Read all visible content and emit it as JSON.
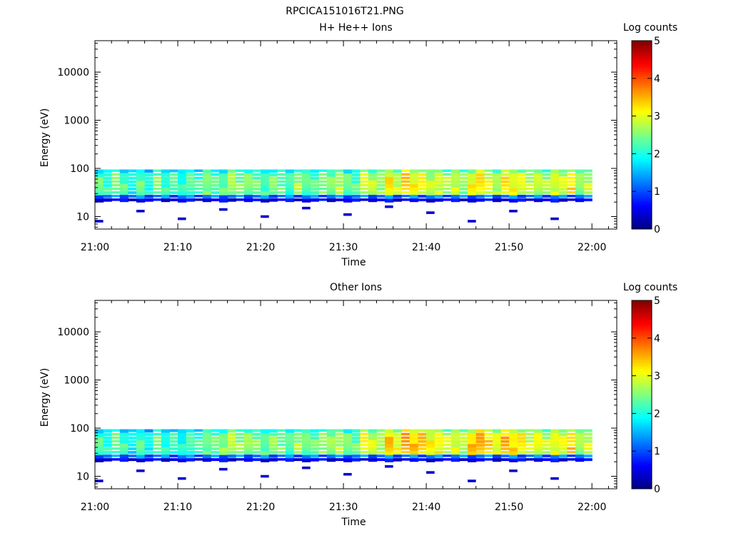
{
  "figure": {
    "title": "RPCICA151016T21.PNG"
  },
  "chart_data": [
    {
      "type": "heatmap",
      "title": "H+ He++ Ions",
      "xlabel": "Time",
      "ylabel": "Energy (eV)",
      "y_scale": "log",
      "x_ticks": [
        "21:00",
        "21:10",
        "21:20",
        "21:30",
        "21:40",
        "21:50",
        "22:00"
      ],
      "y_ticks": [
        "10",
        "100",
        "1000",
        "10000"
      ],
      "x_range": [
        "21:00",
        "22:03"
      ],
      "y_range": [
        5.5,
        45000
      ],
      "data_x_range": [
        "21:00",
        "22:00"
      ],
      "energy_band": [
        20,
        95
      ],
      "colorbar": {
        "label": "Log counts",
        "ticks": [
          "0",
          "1",
          "2",
          "3",
          "4",
          "5"
        ],
        "range": [
          0,
          5
        ]
      },
      "profile_log_counts": [
        2.6,
        2.4,
        2.7,
        2.5,
        2.2,
        2.6,
        2.3,
        2.7,
        2.4,
        2.5,
        2.3,
        2.6,
        2.4,
        2.8,
        2.5,
        2.6,
        2.9,
        2.7,
        2.8,
        2.6,
        2.5,
        2.7,
        2.6,
        2.4,
        2.9,
        2.6,
        2.5,
        2.8,
        2.7,
        3.0,
        2.6,
        2.5,
        3.2,
        3.0,
        2.9,
        3.4,
        3.1,
        3.6,
        3.3,
        3.4,
        3.0,
        3.2,
        2.9,
        3.1,
        2.8,
        3.3,
        3.5,
        3.2,
        3.0,
        3.4,
        3.3,
        3.2,
        3.0,
        3.1,
        2.9,
        3.2,
        3.1,
        3.5,
        2.8,
        3.0
      ]
    },
    {
      "type": "heatmap",
      "title": "Other Ions",
      "xlabel": "Time",
      "ylabel": "Energy (eV)",
      "y_scale": "log",
      "x_ticks": [
        "21:00",
        "21:10",
        "21:20",
        "21:30",
        "21:40",
        "21:50",
        "22:00"
      ],
      "y_ticks": [
        "10",
        "100",
        "1000",
        "10000"
      ],
      "x_range": [
        "21:00",
        "22:03"
      ],
      "y_range": [
        5.5,
        45000
      ],
      "data_x_range": [
        "21:00",
        "22:00"
      ],
      "energy_band": [
        20,
        95
      ],
      "colorbar": {
        "label": "Log counts",
        "ticks": [
          "0",
          "1",
          "2",
          "3",
          "4",
          "5"
        ],
        "range": [
          0,
          5
        ]
      },
      "profile_log_counts": [
        2.5,
        2.3,
        2.6,
        2.4,
        2.1,
        2.5,
        2.2,
        2.6,
        2.3,
        2.4,
        2.2,
        2.5,
        2.4,
        2.7,
        2.6,
        2.8,
        3.0,
        2.8,
        2.9,
        2.7,
        2.6,
        2.8,
        2.7,
        2.5,
        2.9,
        2.7,
        2.6,
        2.9,
        2.8,
        3.0,
        2.7,
        2.6,
        3.4,
        3.1,
        3.0,
        3.6,
        3.3,
        3.8,
        3.6,
        3.7,
        3.3,
        3.4,
        3.1,
        3.2,
        3.0,
        3.6,
        3.8,
        3.5,
        3.3,
        3.7,
        3.5,
        3.4,
        3.1,
        3.3,
        3.0,
        3.3,
        3.2,
        3.6,
        2.9,
        3.1
      ]
    }
  ]
}
